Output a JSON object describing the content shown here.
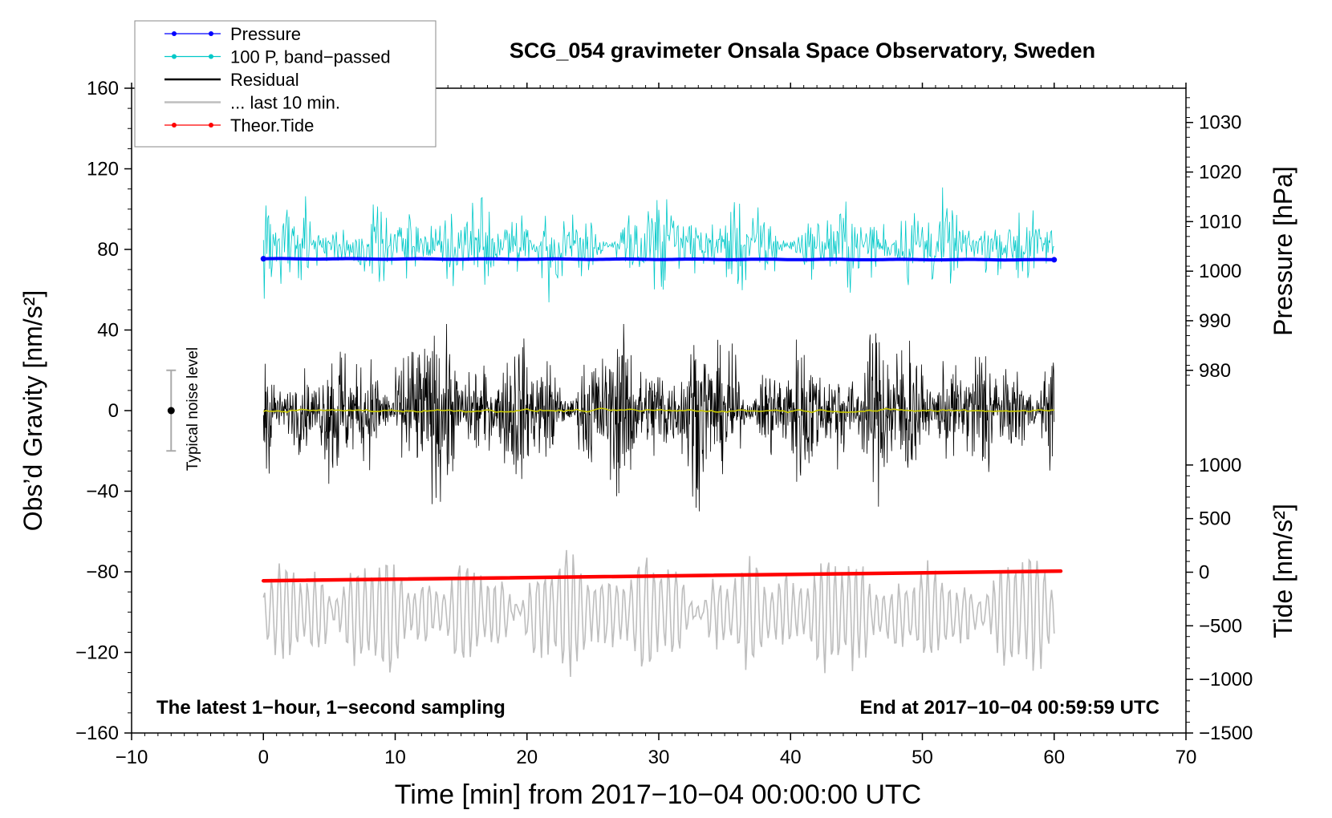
{
  "title": "SCG_054 gravimeter Onsala Space Observatory, Sweden",
  "footer_left": "The latest 1−hour, 1−second sampling",
  "footer_right": "End at 2017−10−04 00:59:59 UTC",
  "noise_label": "Typical noise level",
  "colors": {
    "pressure": "#0000ff",
    "bandpassed": "#00c8c8",
    "residual": "#000000",
    "last10": "#bebebe",
    "tide": "#ff0000",
    "smoothed": "#c8c800"
  },
  "legend": {
    "position": "top-left",
    "items": [
      {
        "label": "Pressure",
        "color": "#0000ff",
        "marker": true
      },
      {
        "label": "100 P, band−passed",
        "color": "#00c8c8",
        "marker": true
      },
      {
        "label": "Residual",
        "color": "#000000",
        "marker": false
      },
      {
        "label": "... last 10 min.",
        "color": "#bebebe",
        "marker": false
      },
      {
        "label": "Theor.Tide",
        "color": "#ff0000",
        "marker": true
      }
    ]
  },
  "chart_data": {
    "type": "line",
    "title": "SCG_054 gravimeter Onsala Space Observatory, Sweden",
    "xlabel": "Time [min] from 2017−10−04 00:00:00 UTC",
    "xlim": [
      -10,
      70
    ],
    "xticks": [
      -10,
      0,
      10,
      20,
      30,
      40,
      50,
      60,
      70
    ],
    "xtick_labels": [
      "−10",
      "0",
      "10",
      "20",
      "30",
      "40",
      "50",
      "60",
      "70"
    ],
    "ylabel_left": "Obs’d Gravity [nm/s²]",
    "ylim_left": [
      -160,
      160
    ],
    "yticks_left": [
      -160,
      -120,
      -80,
      -40,
      0,
      40,
      80,
      120,
      160
    ],
    "ytick_labels_left": [
      "−160",
      "−120",
      "−80",
      "−40",
      "0",
      "40",
      "80",
      "120",
      "160"
    ],
    "ylabel_pressure": "Pressure [hPa]",
    "pressure_ticks": [
      980,
      990,
      1000,
      1010,
      1020,
      1030
    ],
    "pressure_tick_labels": [
      "980",
      "990",
      "1000",
      "1010",
      "1020",
      "1030"
    ],
    "pressure_map": {
      "v1": 980,
      "g1": 20,
      "v2": 1030,
      "g2": 143
    },
    "ylabel_tide": "Tide [nm/s²]",
    "tide_ticks": [
      -1500,
      -1000,
      -500,
      0,
      500,
      1000
    ],
    "tide_tick_labels": [
      "−1500",
      "−1000",
      "−500",
      "0",
      "500",
      "1000"
    ],
    "tide_map": {
      "v1": -1500,
      "g1": -160,
      "v2": 1000,
      "g2": -27
    },
    "noise_bar": {
      "x": -7,
      "center": 0,
      "low": -20,
      "high": 20
    },
    "series": [
      {
        "name": "Pressure",
        "unit": "hPa",
        "x_range": [
          0,
          60
        ],
        "start": 1002.5,
        "end": 1002.3,
        "mean": 1002.4
      },
      {
        "name": "100 P, band−passed",
        "unit": "nm/s² (plot)",
        "x_range": [
          0,
          60
        ],
        "center": 82,
        "min": 44,
        "max": 122,
        "typical_amplitude": 12
      },
      {
        "name": "Residual",
        "unit": "nm/s²",
        "x_range": [
          0,
          60
        ],
        "center": 0,
        "min": -50,
        "max": 43,
        "typical_amplitude": 20
      },
      {
        "name": "Residual (smoothed)",
        "unit": "nm/s²",
        "x_range": [
          0,
          60
        ],
        "center": 0,
        "min": -2,
        "max": 2
      },
      {
        "name": "... last 10 min.",
        "unit": "nm/s² (plot)",
        "x_range": [
          0,
          60
        ],
        "center": -100,
        "min": -136,
        "max": -60,
        "typical_amplitude": 20
      },
      {
        "name": "Theor.Tide",
        "unit": "nm/s²",
        "x": [
          0,
          60.5
        ],
        "values": [
          -80,
          10
        ]
      }
    ]
  }
}
